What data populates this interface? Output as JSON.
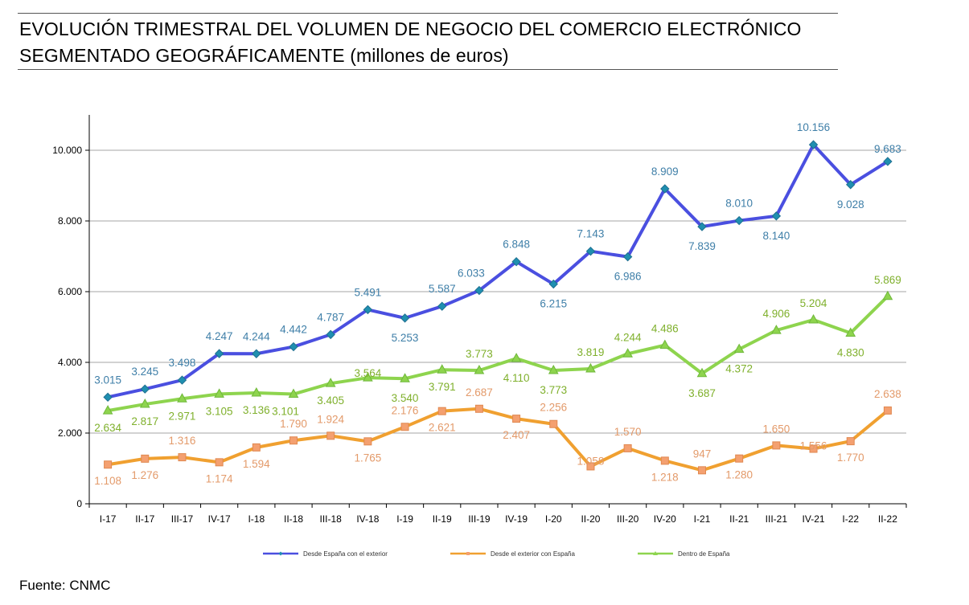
{
  "title": {
    "line1": "EVOLUCIÓN TRIMESTRAL DEL VOLUMEN DE NEGOCIO DEL COMERCIO ELECTRÓNICO",
    "line2": "SEGMENTADO GEOGRÁFICAMENTE (millones de euros)"
  },
  "source": "Fuente: CNMC",
  "chart_data": {
    "type": "line",
    "title": "EVOLUCIÓN TRIMESTRAL DEL VOLUMEN DE NEGOCIO DEL COMERCIO ELECTRÓNICO SEGMENTADO GEOGRÁFICAMENTE (millones de euros)",
    "xlabel": "",
    "ylabel": "",
    "ylim": [
      0,
      11000
    ],
    "yticks": [
      0,
      2000,
      4000,
      6000,
      8000,
      10000
    ],
    "ytick_labels": [
      "0",
      "2.000",
      "4.000",
      "6.000",
      "8.000",
      "10.000"
    ],
    "grid": "horizontal",
    "legend_position": "bottom",
    "categories": [
      "I-17",
      "II-17",
      "III-17",
      "IV-17",
      "I-18",
      "II-18",
      "III-18",
      "IV-18",
      "I-19",
      "II-19",
      "III-19",
      "IV-19",
      "I-20",
      "II-20",
      "III-20",
      "IV-20",
      "I-21",
      "II-21",
      "III-21",
      "IV-21",
      "I-22",
      "II-22"
    ],
    "series": [
      {
        "name": "Desde España con el exterior",
        "color": "#4a4fe0",
        "label_color": "#3f7fa8",
        "marker": "diamond",
        "values": [
          3015,
          3245,
          3498,
          4247,
          4244,
          4442,
          4787,
          5491,
          5253,
          5587,
          6033,
          6848,
          6215,
          7143,
          6986,
          8909,
          7839,
          8010,
          8140,
          10156,
          9028,
          9683
        ],
        "labels": [
          "3.015",
          "3.245",
          "3.498",
          "4.247",
          "4.244",
          "4.442",
          "4.787",
          "5.491",
          "5.253",
          "5.587",
          "6.033",
          "6.848",
          "6.215",
          "7.143",
          "6.986",
          "8.909",
          "7.839",
          "8.010",
          "8.140",
          "10.156",
          "9.028",
          "9.683"
        ]
      },
      {
        "name": "Desde el exterior con España",
        "color": "#f0a030",
        "label_color": "#e39a6a",
        "marker": "square",
        "values": [
          1108,
          1276,
          1316,
          1174,
          1594,
          1790,
          1924,
          1765,
          2176,
          2621,
          2687,
          2407,
          2256,
          1058,
          1570,
          1218,
          947,
          1280,
          1650,
          1556,
          1770,
          2638
        ],
        "labels": [
          "1.108",
          "1.276",
          "1.316",
          "1.174",
          "1.594",
          "1.790",
          "1.924",
          "1.765",
          "2.176",
          "2.621",
          "2.687",
          "2.407",
          "2.256",
          "1.058",
          "1.570",
          "1.218",
          "947",
          "1.280",
          "1.650",
          "1.556",
          "1.770",
          "2.638"
        ]
      },
      {
        "name": "Dentro de España",
        "color": "#8ed44e",
        "label_color": "#7fb02c",
        "marker": "triangle",
        "values": [
          2634,
          2817,
          2971,
          3105,
          3136,
          3101,
          3405,
          3564,
          3540,
          3791,
          3773,
          4110,
          3773,
          3819,
          4244,
          4486,
          3687,
          4372,
          4906,
          5204,
          4830,
          5869
        ],
        "labels": [
          "2.634",
          "2.817",
          "2.971",
          "3.105",
          "3.136",
          "3.101",
          "3.405",
          "3.564",
          "3.540",
          "3.791",
          "3.773",
          "4.110",
          "3.773",
          "3.819",
          "4.244",
          "4.486",
          "3.687",
          "4.372",
          "4.906",
          "5.204",
          "4.830",
          "5.869"
        ]
      }
    ]
  }
}
